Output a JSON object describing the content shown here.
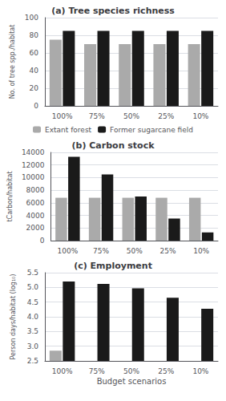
{
  "chart_data": [
    {
      "type": "bar",
      "title": "(a) Tree species richness",
      "ylabel": "No. of tree spp./habitat",
      "categories": [
        "100%",
        "75%",
        "50%",
        "25%",
        "10%"
      ],
      "series": [
        {
          "name": "Extant forest",
          "color": "#aaaaaa",
          "values": [
            75,
            70,
            70,
            70,
            70
          ]
        },
        {
          "name": "Former sugarcane field",
          "color": "#1a1a1a",
          "values": [
            85,
            85,
            85,
            85,
            85
          ]
        }
      ],
      "ylim": [
        0,
        100
      ],
      "yticks": [
        0,
        20,
        40,
        60,
        80,
        100
      ],
      "grid": true,
      "legend": "bottom"
    },
    {
      "type": "bar",
      "title": "(b) Carbon stock",
      "ylabel": "tCarbon/habitat",
      "categories": [
        "100%",
        "75%",
        "50%",
        "25%",
        "10%"
      ],
      "series": [
        {
          "name": "Extant forest",
          "color": "#aaaaaa",
          "values": [
            6800,
            6800,
            6800,
            6800,
            6800
          ]
        },
        {
          "name": "Former sugarcane field",
          "color": "#1a1a1a",
          "values": [
            13300,
            10500,
            7000,
            3500,
            1300
          ]
        }
      ],
      "ylim": [
        0,
        14000
      ],
      "yticks": [
        0,
        2000,
        4000,
        6000,
        8000,
        10000,
        12000,
        14000
      ],
      "grid": true
    },
    {
      "type": "bar",
      "title": "(c) Employment",
      "ylabel": "Person days/habitat (log₁₀)",
      "xlabel": "Budget scenarios",
      "categories": [
        "100%",
        "75%",
        "50%",
        "25%",
        "10%"
      ],
      "series": [
        {
          "name": "Extant forest",
          "color": "#aaaaaa",
          "values": [
            2.85,
            null,
            null,
            null,
            null
          ]
        },
        {
          "name": "Former sugarcane field",
          "color": "#1a1a1a",
          "values": [
            5.2,
            5.12,
            4.97,
            4.65,
            4.27
          ]
        }
      ],
      "ylim": [
        2.5,
        5.5
      ],
      "yticks": [
        2.5,
        {
          "value": 3.0,
          "label": "3.0"
        },
        3.5,
        {
          "value": 4.0,
          "label": "4.0"
        },
        4.5,
        {
          "value": 5.0,
          "label": "5.0"
        },
        5.5
      ],
      "grid": true
    }
  ]
}
